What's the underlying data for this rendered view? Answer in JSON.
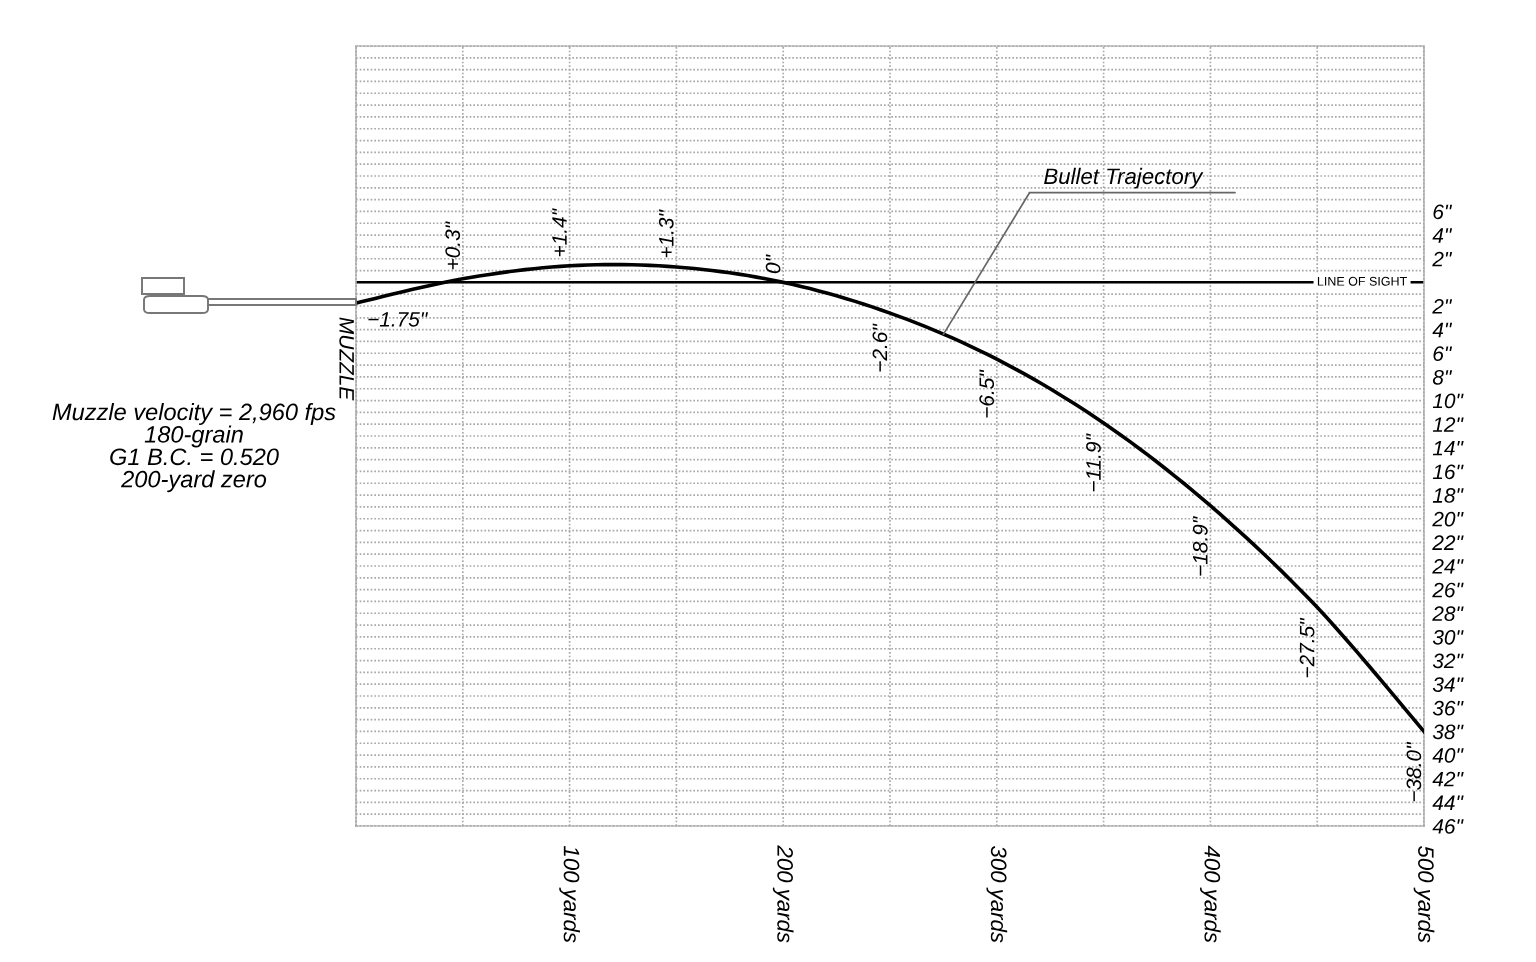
{
  "chart_data": {
    "type": "line",
    "x": [
      0,
      50,
      100,
      150,
      200,
      250,
      300,
      350,
      400,
      450,
      500
    ],
    "series": [
      {
        "color": "#000000",
        "values": [
          -1.75,
          0.3,
          1.4,
          1.3,
          0,
          -2.6,
          -6.5,
          -11.9,
          -18.9,
          -27.5,
          -38.0
        ],
        "value_labels": [
          "−1.75\"",
          "+0.3\"",
          "+1.4\"",
          "+1.3\"",
          "0\"",
          "−2.6\"",
          "−6.5\"",
          "−11.9\"",
          "−18.9\"",
          "−27.5\"",
          "−38.0\""
        ]
      }
    ],
    "xlim": [
      0,
      500
    ],
    "xticks": [
      {
        "value": 0,
        "label": null
      },
      {
        "value": 50,
        "label": null
      },
      {
        "value": 100,
        "label": "100 yards"
      },
      {
        "value": 150,
        "label": null
      },
      {
        "value": 200,
        "label": "200 yards"
      },
      {
        "value": 250,
        "label": null
      },
      {
        "value": 300,
        "label": "300 yards"
      },
      {
        "value": 350,
        "label": null
      },
      {
        "value": 400,
        "label": "400 yards"
      },
      {
        "value": 450,
        "label": null
      },
      {
        "value": 500,
        "label": "500 yards"
      }
    ],
    "ylim": [
      -46,
      20
    ],
    "yticks": [
      {
        "value": 20,
        "label": null
      },
      {
        "value": 19,
        "label": null
      },
      {
        "value": 18,
        "label": null
      },
      {
        "value": 17,
        "label": null
      },
      {
        "value": 16,
        "label": null
      },
      {
        "value": 15,
        "label": null
      },
      {
        "value": 14,
        "label": null
      },
      {
        "value": 13,
        "label": null
      },
      {
        "value": 12,
        "label": null
      },
      {
        "value": 11,
        "label": null
      },
      {
        "value": 10,
        "label": null
      },
      {
        "value": 9,
        "label": null
      },
      {
        "value": 8,
        "label": null
      },
      {
        "value": 7,
        "label": null
      },
      {
        "value": 6,
        "label": "6\""
      },
      {
        "value": 5,
        "label": null
      },
      {
        "value": 4,
        "label": "4\""
      },
      {
        "value": 3,
        "label": null
      },
      {
        "value": 2,
        "label": "2\""
      },
      {
        "value": 1,
        "label": null
      },
      {
        "value": 0,
        "label": null
      },
      {
        "value": -1,
        "label": null
      },
      {
        "value": -2,
        "label": "2\""
      },
      {
        "value": -3,
        "label": null
      },
      {
        "value": -4,
        "label": "4\""
      },
      {
        "value": -5,
        "label": null
      },
      {
        "value": -6,
        "label": "6\""
      },
      {
        "value": -7,
        "label": null
      },
      {
        "value": -8,
        "label": "8\""
      },
      {
        "value": -9,
        "label": null
      },
      {
        "value": -10,
        "label": "10\""
      },
      {
        "value": -11,
        "label": null
      },
      {
        "value": -12,
        "label": "12\""
      },
      {
        "value": -13,
        "label": null
      },
      {
        "value": -14,
        "label": "14\""
      },
      {
        "value": -15,
        "label": null
      },
      {
        "value": -16,
        "label": "16\""
      },
      {
        "value": -17,
        "label": null
      },
      {
        "value": -18,
        "label": "18\""
      },
      {
        "value": -19,
        "label": null
      },
      {
        "value": -20,
        "label": "20\""
      },
      {
        "value": -21,
        "label": null
      },
      {
        "value": -22,
        "label": "22\""
      },
      {
        "value": -23,
        "label": null
      },
      {
        "value": -24,
        "label": "24\""
      },
      {
        "value": -25,
        "label": null
      },
      {
        "value": -26,
        "label": "26\""
      },
      {
        "value": -27,
        "label": null
      },
      {
        "value": -28,
        "label": "28\""
      },
      {
        "value": -29,
        "label": null
      },
      {
        "value": -30,
        "label": "30\""
      },
      {
        "value": -31,
        "label": null
      },
      {
        "value": -32,
        "label": "32\""
      },
      {
        "value": -33,
        "label": null
      },
      {
        "value": -34,
        "label": "34\""
      },
      {
        "value": -35,
        "label": null
      },
      {
        "value": -36,
        "label": "36\""
      },
      {
        "value": -37,
        "label": null
      },
      {
        "value": -38,
        "label": "38\""
      },
      {
        "value": -39,
        "label": null
      },
      {
        "value": -40,
        "label": "40\""
      },
      {
        "value": -41,
        "label": null
      },
      {
        "value": -42,
        "label": "42\""
      },
      {
        "value": -43,
        "label": null
      },
      {
        "value": -44,
        "label": "44\""
      },
      {
        "value": -45,
        "label": null
      },
      {
        "value": -46,
        "label": "46\""
      }
    ],
    "grid": true,
    "ref_lines": [
      {
        "axis": "y",
        "value": 0,
        "label": "LINE OF SIGHT",
        "color": "#000000"
      }
    ],
    "annotations": [
      {
        "text": "MUZZLE",
        "x": 0,
        "y": -1.75
      },
      {
        "text": "Bullet Trajectory",
        "x": 275,
        "y": -4.4
      },
      "Muzzle velocity = 2,960 fps",
      "180-grain",
      "G1 B.C. = 0.520",
      "200-yard zero"
    ]
  }
}
